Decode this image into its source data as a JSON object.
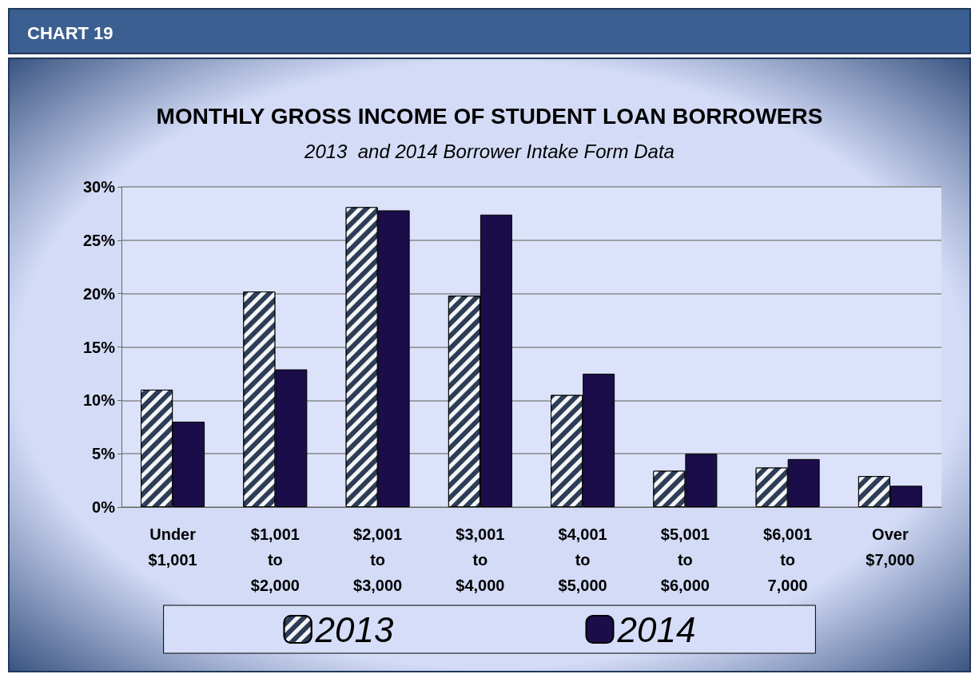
{
  "chart_data": {
    "type": "bar",
    "title": "MONTHLY GROSS INCOME OF STUDENT LOAN BORROWERS",
    "subtitle": "2013  and 2014 Borrower Intake Form Data",
    "annotations": [
      "CHART 19"
    ],
    "categories": [
      "Under $1,001",
      "$1,001 to $2,000",
      "$2,001 to $3,000",
      "$3,001 to $4,000",
      "$4,001 to $5,000",
      "$5,001 to $6,000",
      "$6,001 to 7,000",
      "Over $7,000"
    ],
    "series": [
      {
        "name": "2013",
        "color": "#2e3d57",
        "values": [
          11.0,
          20.2,
          28.1,
          19.8,
          10.5,
          3.4,
          3.7,
          2.9
        ]
      },
      {
        "name": "2014",
        "color": "#1a0d4a",
        "values": [
          8.0,
          12.9,
          27.8,
          27.4,
          12.5,
          5.0,
          4.5,
          2.0
        ]
      }
    ],
    "ylim": [
      0,
      30
    ],
    "yticks": [
      {
        "value": 0,
        "label": "0%"
      },
      {
        "value": 5,
        "label": "5%"
      },
      {
        "value": 10,
        "label": "10%"
      },
      {
        "value": 15,
        "label": "15%"
      },
      {
        "value": 20,
        "label": "20%"
      },
      {
        "value": 25,
        "label": "25%"
      },
      {
        "value": 30,
        "label": "30%"
      }
    ],
    "grid": "y",
    "legend": "bottom"
  }
}
